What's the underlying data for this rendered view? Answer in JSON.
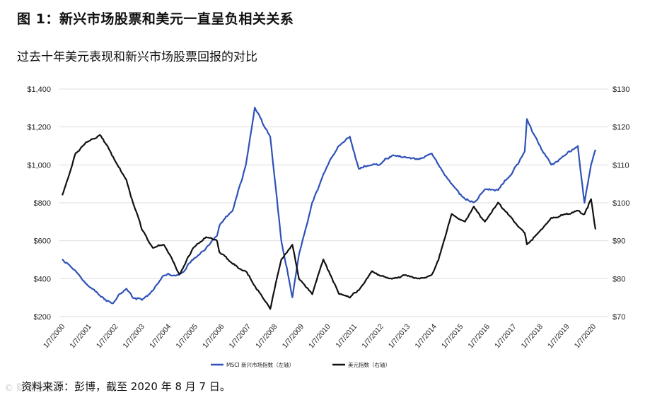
{
  "header": {
    "title": "图 1：新兴市场股票和美元一直呈负相关关系",
    "subtitle": "过去十年美元表现和新兴市场股票回报的对比"
  },
  "footer": {
    "source": "资料来源：彭博，截至 2020 年 8 月 7 日。",
    "watermark": "© 财富管理"
  },
  "chart_data": {
    "type": "line",
    "title": "过去十年美元表现和新兴市场股票回报的对比",
    "x": [
      "2000-07",
      "2001-01",
      "2001-06",
      "2001-12",
      "2002-06",
      "2002-12",
      "2003-03",
      "2003-07",
      "2003-12",
      "2004-05",
      "2004-12",
      "2005-06",
      "2005-12",
      "2006-05",
      "2006-06",
      "2006-12",
      "2007-06",
      "2007-10",
      "2008-05",
      "2008-10",
      "2009-03",
      "2009-06",
      "2009-12",
      "2010-05",
      "2010-12",
      "2011-05",
      "2011-09",
      "2012-03",
      "2012-06",
      "2012-12",
      "2013-06",
      "2013-12",
      "2014-06",
      "2014-09",
      "2015-03",
      "2015-09",
      "2016-01",
      "2016-06",
      "2016-12",
      "2017-06",
      "2017-12",
      "2018-01",
      "2018-06",
      "2018-12",
      "2019-06",
      "2019-12",
      "2020-03",
      "2020-06",
      "2020-08"
    ],
    "series": [
      {
        "name": "MSCI 新兴市场指数（左轴）",
        "axis": "left",
        "color": "#2f52b8",
        "values": [
          500,
          440,
          370,
          310,
          270,
          350,
          300,
          290,
          340,
          420,
          420,
          500,
          560,
          630,
          680,
          760,
          1000,
          1300,
          1150,
          600,
          300,
          530,
          800,
          950,
          1100,
          1150,
          980,
          1000,
          1000,
          1050,
          1040,
          1030,
          1060,
          1000,
          900,
          820,
          800,
          870,
          870,
          950,
          1070,
          1240,
          1120,
          1000,
          1050,
          1100,
          800,
          1000,
          1080
        ]
      },
      {
        "name": "美元指数（右轴）",
        "axis": "right",
        "color": "#111111",
        "values": [
          102,
          113,
          116,
          118,
          112,
          106,
          100,
          93,
          88,
          89,
          81,
          88,
          91,
          90,
          87,
          84,
          82,
          78,
          72,
          85,
          89,
          80,
          76,
          85,
          76,
          75,
          77,
          82,
          81,
          80,
          81,
          80,
          81,
          85,
          97,
          95,
          99,
          95,
          100,
          96,
          92,
          89,
          92,
          96,
          97,
          98,
          97,
          101,
          93
        ]
      }
    ],
    "x_tick_labels": [
      "1/7/2000",
      "1/7/2001",
      "1/7/2002",
      "1/7/2003",
      "1/7/2004",
      "1/7/2005",
      "1/7/2006",
      "1/7/2007",
      "1/7/2008",
      "1/7/2009",
      "1/7/2010",
      "1/7/2011",
      "1/7/2012",
      "1/7/2013",
      "1/7/2014",
      "1/7/2015",
      "1/7/2016",
      "1/7/2017",
      "1/7/2018",
      "1/7/2019",
      "1/7/2020"
    ],
    "y_left": {
      "min": 200,
      "max": 1400,
      "step": 200,
      "ticks": [
        "$200",
        "$400",
        "$600",
        "$800",
        "$1,000",
        "$1,200",
        "$1,400"
      ]
    },
    "y_right": {
      "min": 70,
      "max": 130,
      "step": 10,
      "ticks": [
        "$70",
        "$80",
        "$90",
        "$100",
        "$110",
        "$120",
        "$130"
      ]
    },
    "legend": [
      {
        "label": "MSCI 新兴市场指数（左轴）",
        "color": "#2f52b8"
      },
      {
        "label": "美元指数（右轴）",
        "color": "#111111"
      }
    ],
    "legend_position": "bottom",
    "grid": true,
    "gridlines": "horizontal, light grey"
  }
}
